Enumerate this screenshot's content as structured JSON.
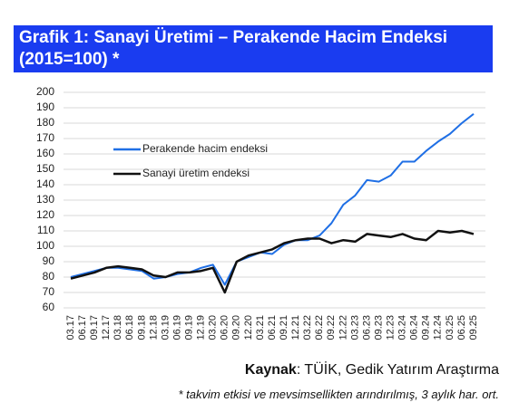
{
  "chart_data": {
    "type": "line",
    "title": "Grafik 1: Sanayi Üretimi – Perakende Hacim Endeksi (2015=100) *",
    "categories": [
      "03.17",
      "06.17",
      "09.17",
      "12.17",
      "03.18",
      "06.18",
      "09.18",
      "12.18",
      "03.19",
      "06.19",
      "09.19",
      "12.19",
      "03.20",
      "06.20",
      "09.20",
      "12.20",
      "03.21",
      "06.21",
      "09.21",
      "12.21",
      "03.22",
      "06.22",
      "09.22",
      "12.22",
      "03.23",
      "06.23",
      "09.23",
      "12.23",
      "03.24",
      "06.24",
      "09.24",
      "12.24",
      "03.25",
      "06.25",
      "09.25"
    ],
    "series": [
      {
        "name": "Perakende hacim endeksi",
        "color": "#1f6fe5",
        "values": [
          80,
          82,
          84,
          86,
          86,
          85,
          84,
          79,
          80,
          82,
          83,
          86,
          88,
          75,
          90,
          93,
          96,
          95,
          101,
          104,
          104,
          107,
          115,
          127,
          133,
          143,
          142,
          146,
          155,
          155,
          162,
          168,
          173,
          180,
          186
        ]
      },
      {
        "name": "Sanayi üretim endeksi",
        "color": "#111111",
        "values": [
          79,
          81,
          83,
          86,
          87,
          86,
          85,
          81,
          80,
          83,
          83,
          84,
          86,
          70,
          90,
          94,
          96,
          98,
          102,
          104,
          105,
          105,
          102,
          104,
          103,
          108,
          107,
          106,
          108,
          105,
          104,
          110,
          109,
          110,
          108
        ]
      }
    ],
    "ylim": [
      60,
      200
    ],
    "yticks": [
      60,
      70,
      80,
      90,
      100,
      110,
      120,
      130,
      140,
      150,
      160,
      170,
      180,
      190,
      200
    ],
    "grid": true,
    "source_label": "Kaynak",
    "source_text": ": TÜİK, Gedik Yatırım Araştırma",
    "footnote": "* takvim etkisi ve mevsimsellikten arındırılmış, 3 aylık har. ort."
  }
}
